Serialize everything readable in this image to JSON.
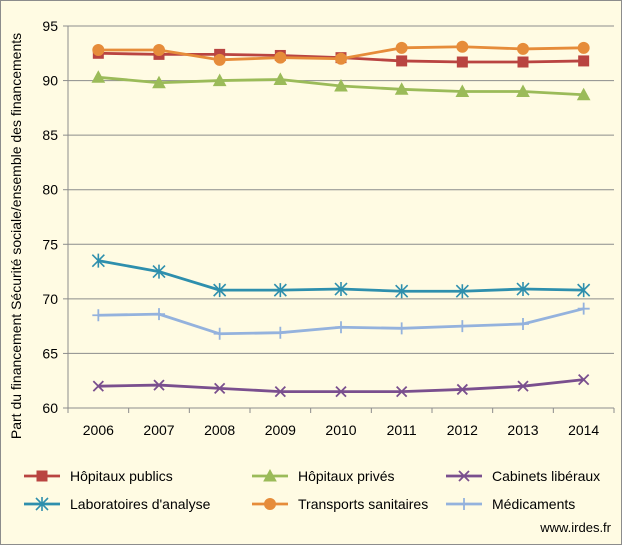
{
  "chart_data": {
    "type": "line",
    "title": "",
    "xlabel": "",
    "ylabel": "Part du financement Sécurité sociale/ensemble des financements",
    "x": [
      "2006",
      "2007",
      "2008",
      "2009",
      "2010",
      "2011",
      "2012",
      "2013",
      "2014"
    ],
    "ylim": [
      60,
      95
    ],
    "yticks": [
      60,
      65,
      70,
      75,
      80,
      85,
      90,
      95
    ],
    "grid": "horizontal",
    "legend_position": "bottom",
    "series": [
      {
        "name": "Hôpitaux publics",
        "color": "#B94441",
        "marker": "square",
        "values": [
          92.5,
          92.4,
          92.4,
          92.3,
          92.1,
          91.8,
          91.7,
          91.7,
          91.8
        ]
      },
      {
        "name": "Hôpitaux privés",
        "color": "#9BBB59",
        "marker": "triangle",
        "values": [
          90.3,
          89.8,
          90.0,
          90.1,
          89.5,
          89.2,
          89.0,
          89.0,
          88.7
        ]
      },
      {
        "name": "Cabinets libéraux",
        "color": "#7A4F8E",
        "marker": "x",
        "values": [
          62.0,
          62.1,
          61.8,
          61.5,
          61.5,
          61.5,
          61.7,
          62.0,
          62.6
        ]
      },
      {
        "name": "Laboratoires d'analyse",
        "color": "#2E8FAD",
        "marker": "star",
        "values": [
          73.5,
          72.5,
          70.8,
          70.8,
          70.9,
          70.7,
          70.7,
          70.9,
          70.8
        ]
      },
      {
        "name": "Transports sanitaires",
        "color": "#E68C3A",
        "marker": "circle",
        "values": [
          92.8,
          92.8,
          91.9,
          92.1,
          92.0,
          93.0,
          93.1,
          92.9,
          93.0
        ]
      },
      {
        "name": "Médicaments",
        "color": "#94B2DD",
        "marker": "plus",
        "values": [
          68.5,
          68.6,
          66.8,
          66.9,
          67.4,
          67.3,
          67.5,
          67.7,
          69.1
        ]
      }
    ]
  },
  "credit": "www.irdes.fr"
}
